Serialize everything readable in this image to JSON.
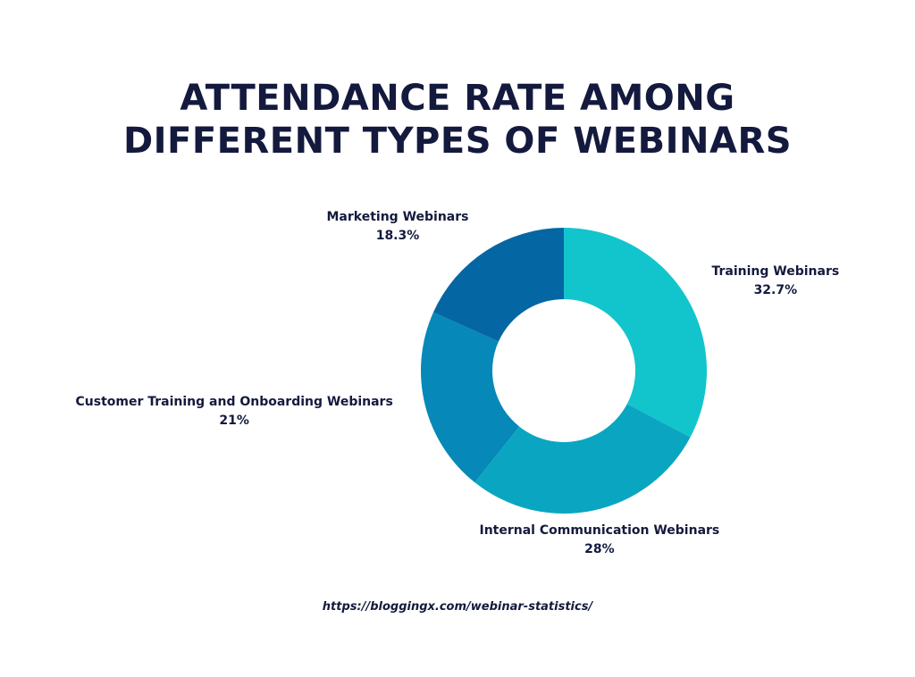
{
  "title_lines": [
    "ATTENDANCE RATE AMONG",
    "DIFFERENT TYPES OF WEBINARS"
  ],
  "source_url": "https://bloggingx.com/webinar-statistics/",
  "chart_data": {
    "type": "pie",
    "donut": true,
    "title": "ATTENDANCE RATE AMONG DIFFERENT TYPES OF WEBINARS",
    "legend": "none",
    "slices": [
      {
        "label": "Training Webinars",
        "value": 32.7,
        "display": "32.7%",
        "color": "#12c5cc"
      },
      {
        "label": "Internal Communication Webinars",
        "value": 28,
        "display": "28%",
        "color": "#0aa6c1"
      },
      {
        "label": "Customer Training and Onboarding Webinars",
        "value": 21,
        "display": "21%",
        "color": "#0688b8"
      },
      {
        "label": "Marketing Webinars",
        "value": 18.3,
        "display": "18.3%",
        "color": "#0466a3"
      }
    ]
  }
}
